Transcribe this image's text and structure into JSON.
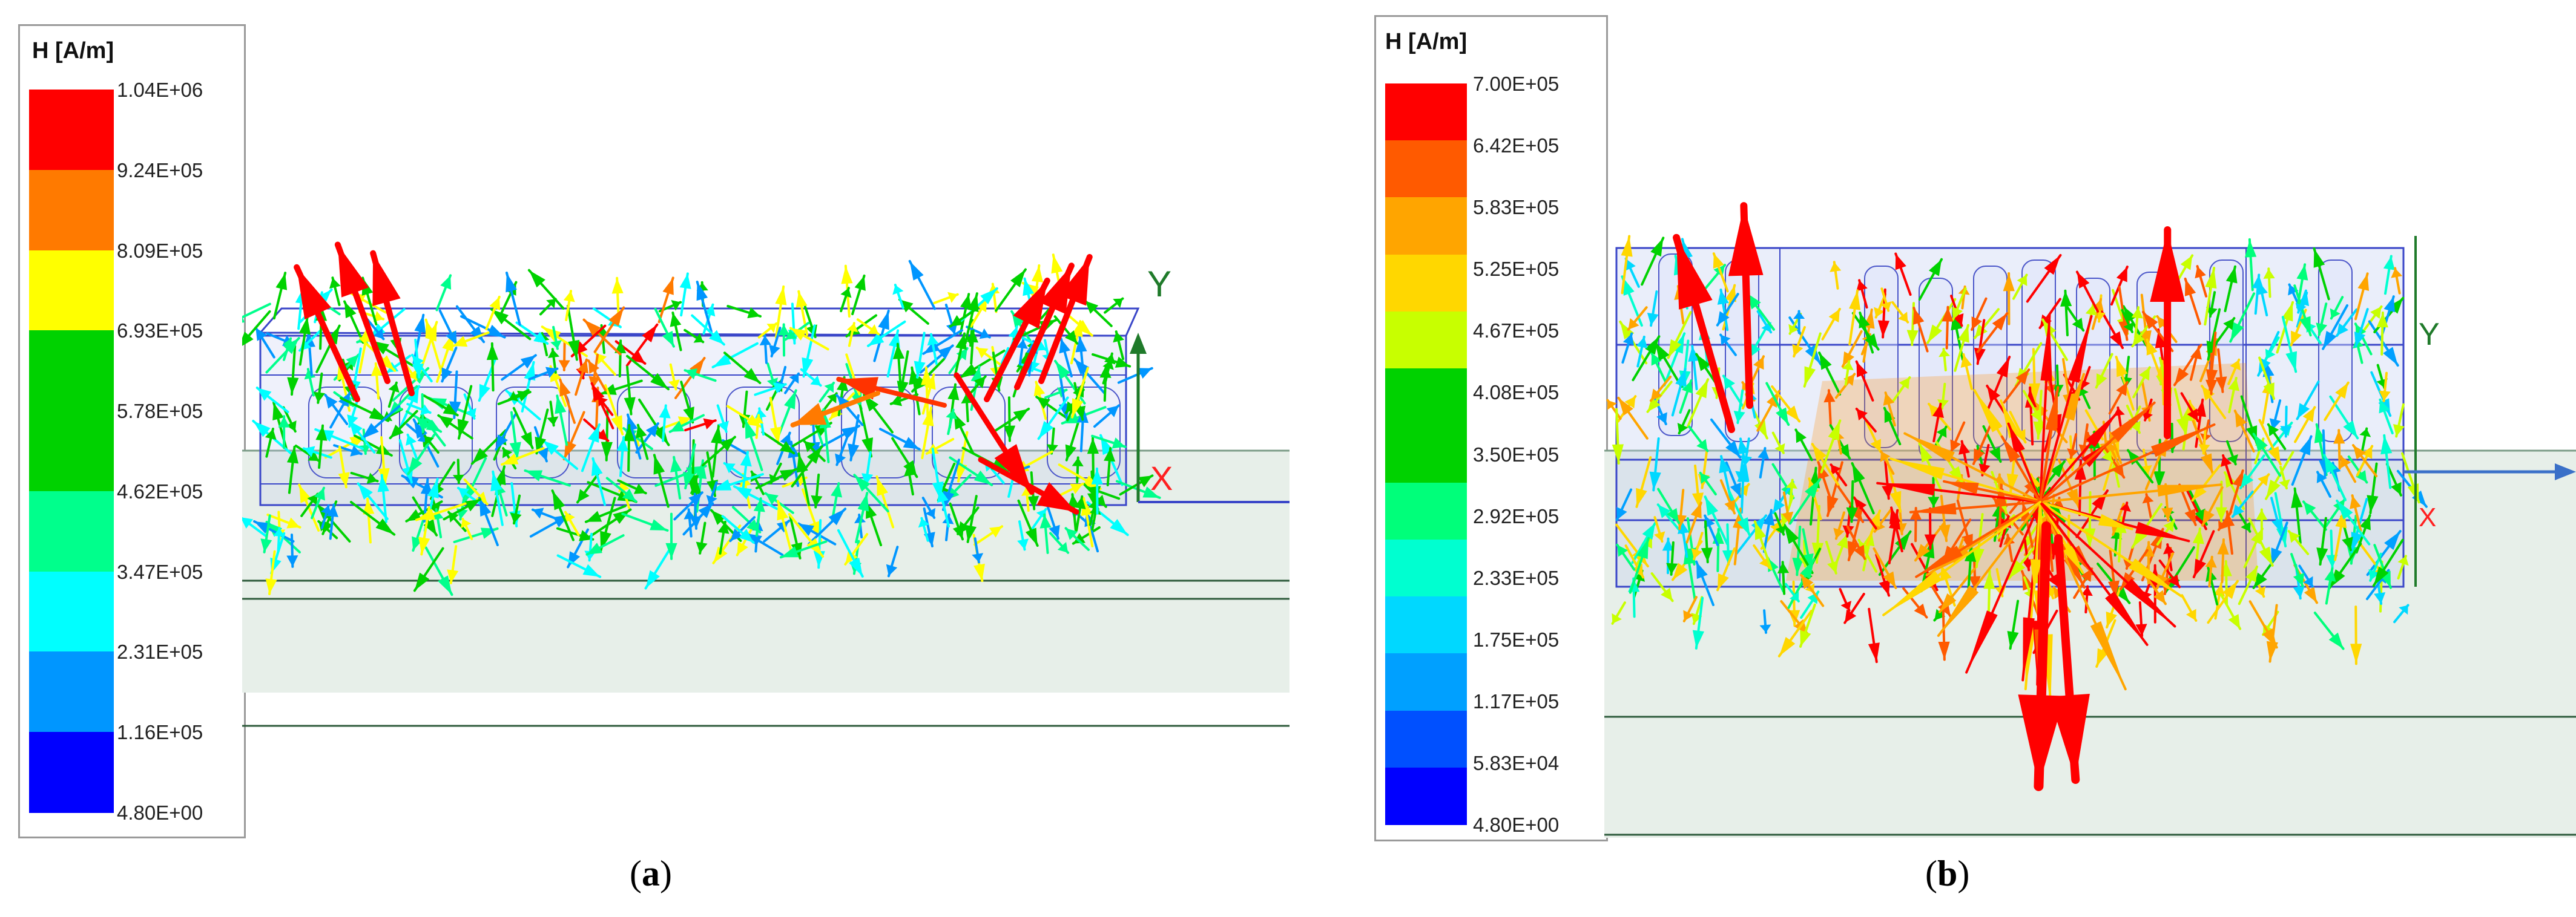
{
  "panels": [
    {
      "id": "a",
      "legend_title": "H [A/m]",
      "ticks": [
        "1.04E+06",
        "9.24E+05",
        "8.09E+05",
        "6.93E+05",
        "5.78E+05",
        "4.62E+05",
        "3.47E+05",
        "2.31E+05",
        "1.16E+05",
        "4.80E+00"
      ],
      "colors": [
        "#ff0000",
        "#ff7a00",
        "#ffff00",
        "#00d200",
        "#00d200",
        "#00ff8c",
        "#00ffff",
        "#0096ff",
        "#0000ff"
      ],
      "axis_labels": {
        "y": "Y",
        "x": "X"
      },
      "caption_letter": "a"
    },
    {
      "id": "b",
      "legend_title": "H [A/m]",
      "ticks": [
        "7.00E+05",
        "6.42E+05",
        "5.83E+05",
        "5.25E+05",
        "4.67E+05",
        "4.08E+05",
        "3.50E+05",
        "2.92E+05",
        "2.33E+05",
        "1.75E+05",
        "1.17E+05",
        "5.83E+04",
        "4.80E+00"
      ],
      "colors": [
        "#ff0000",
        "#ff5a00",
        "#ffa500",
        "#ffd700",
        "#c8ff00",
        "#00d200",
        "#00d200",
        "#00ff7a",
        "#00ffd0",
        "#00d8ff",
        "#00a0ff",
        "#0050ff",
        "#0000ff"
      ],
      "axis_labels": {
        "y": "Y",
        "x": "X"
      },
      "caption_letter": "b"
    }
  ],
  "caption_open": "(",
  "caption_close": ")"
}
